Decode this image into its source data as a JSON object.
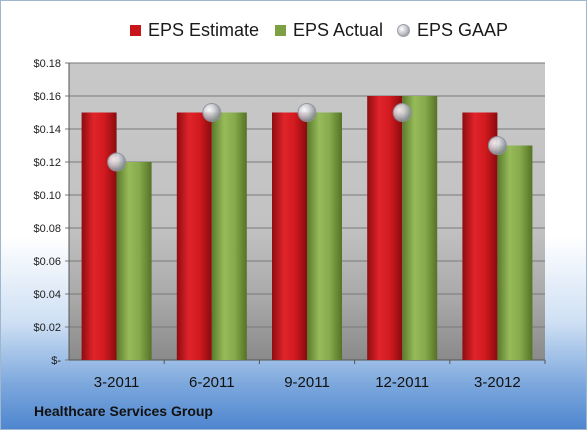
{
  "legend": {
    "estimate_label": "EPS Estimate",
    "actual_label": "EPS Actual",
    "gaap_label": "EPS GAAP"
  },
  "company": "Healthcare Services Group",
  "colors": {
    "estimate": "#c8151a",
    "actual": "#7ea045",
    "gaap": "#b8bcc4"
  },
  "chart_data": {
    "type": "bar",
    "categories": [
      "3-2011",
      "6-2011",
      "9-2011",
      "12-2011",
      "3-2012"
    ],
    "series": [
      {
        "name": "EPS Estimate",
        "values": [
          0.15,
          0.15,
          0.15,
          0.16,
          0.15
        ]
      },
      {
        "name": "EPS Actual",
        "values": [
          0.12,
          0.15,
          0.15,
          0.16,
          0.13
        ]
      },
      {
        "name": "EPS GAAP",
        "values": [
          0.12,
          0.15,
          0.15,
          0.15,
          0.13
        ]
      }
    ],
    "y_ticks": [
      "$-",
      "$0.02",
      "$0.04",
      "$0.06",
      "$0.08",
      "$0.10",
      "$0.12",
      "$0.14",
      "$0.16",
      "$0.18"
    ],
    "ylim": [
      0,
      0.18
    ],
    "grid": true,
    "legend_position": "top"
  }
}
